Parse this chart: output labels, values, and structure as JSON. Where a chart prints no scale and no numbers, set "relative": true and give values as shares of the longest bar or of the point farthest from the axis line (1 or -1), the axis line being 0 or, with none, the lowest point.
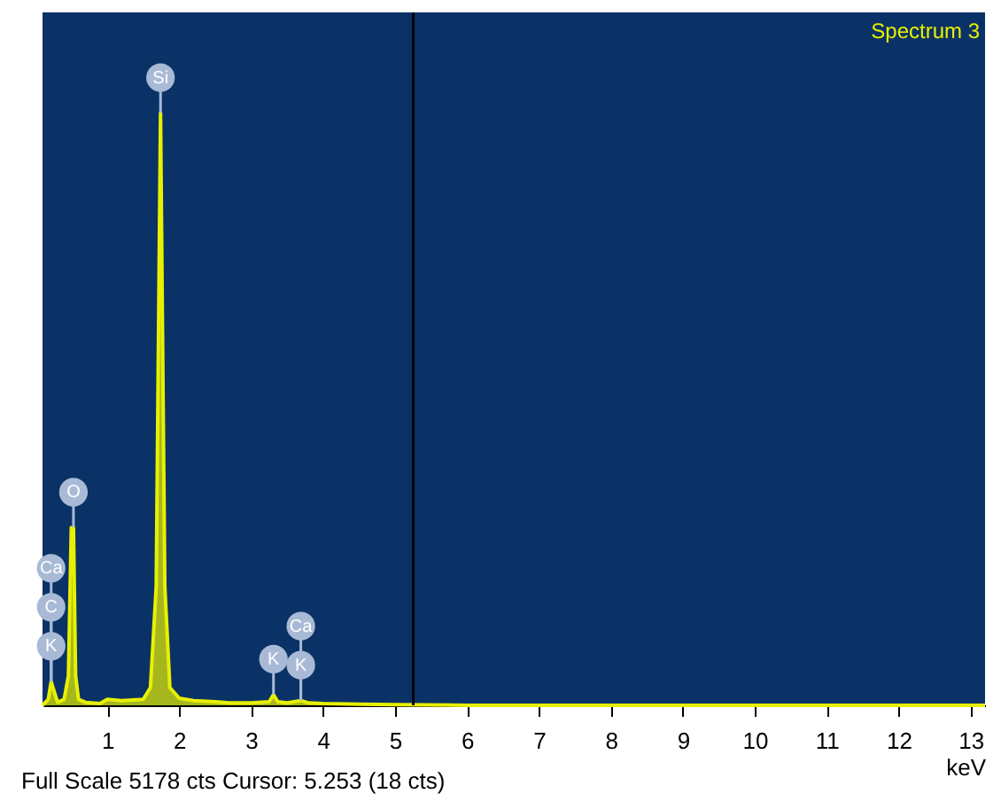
{
  "chart_data": {
    "type": "area",
    "relative": true,
    "title": "Spectrum 3",
    "xlabel": "keV",
    "x": [
      0.1,
      0.18,
      0.22,
      0.27,
      0.31,
      0.4,
      0.46,
      0.5,
      0.53,
      0.56,
      0.6,
      0.7,
      0.9,
      1.0,
      1.2,
      1.5,
      1.6,
      1.68,
      1.74,
      1.8,
      1.87,
      2.0,
      2.2,
      2.5,
      2.7,
      3.0,
      3.25,
      3.31,
      3.37,
      3.5,
      3.69,
      3.8,
      4.0,
      4.5,
      5.0,
      6.0,
      13.2
    ],
    "series": [
      {
        "color": "#e8f000",
        "values": [
          0,
          0.01,
          0.04,
          0.02,
          0.005,
          0.01,
          0.05,
          0.3,
          0.3,
          0.05,
          0.01,
          0.005,
          0.003,
          0.01,
          0.008,
          0.01,
          0.03,
          0.2,
          1.0,
          0.2,
          0.03,
          0.012,
          0.008,
          0.006,
          0.004,
          0.004,
          0.006,
          0.018,
          0.006,
          0.004,
          0.008,
          0.004,
          0.003,
          0.002,
          0.001,
          0,
          0
        ]
      }
    ],
    "xlim": [
      0.1,
      13.2
    ],
    "xticks": [
      1,
      2,
      3,
      4,
      5,
      6,
      7,
      8,
      9,
      10,
      11,
      12,
      13
    ],
    "ref_lines": [
      {
        "axis": "x",
        "value": 5.253,
        "color": "#000000"
      }
    ],
    "annotations": [
      {
        "text": "Si",
        "x": 1.74,
        "y": 1.0
      },
      {
        "text": "O",
        "x": 0.53,
        "y": 0.3
      },
      {
        "text": "Ca",
        "x": 0.22,
        "y": 0.04
      },
      {
        "text": "C",
        "x": 0.22,
        "y": 0.04
      },
      {
        "text": "K",
        "x": 0.22,
        "y": 0.04
      },
      {
        "text": "K",
        "x": 3.31,
        "y": 0.018
      },
      {
        "text": "Ca",
        "x": 3.69,
        "y": 0.008
      },
      {
        "text": "K",
        "x": 3.69,
        "y": 0.008
      },
      "Full Scale 5178 cts Cursor: 5.253  (18 cts)"
    ]
  }
}
